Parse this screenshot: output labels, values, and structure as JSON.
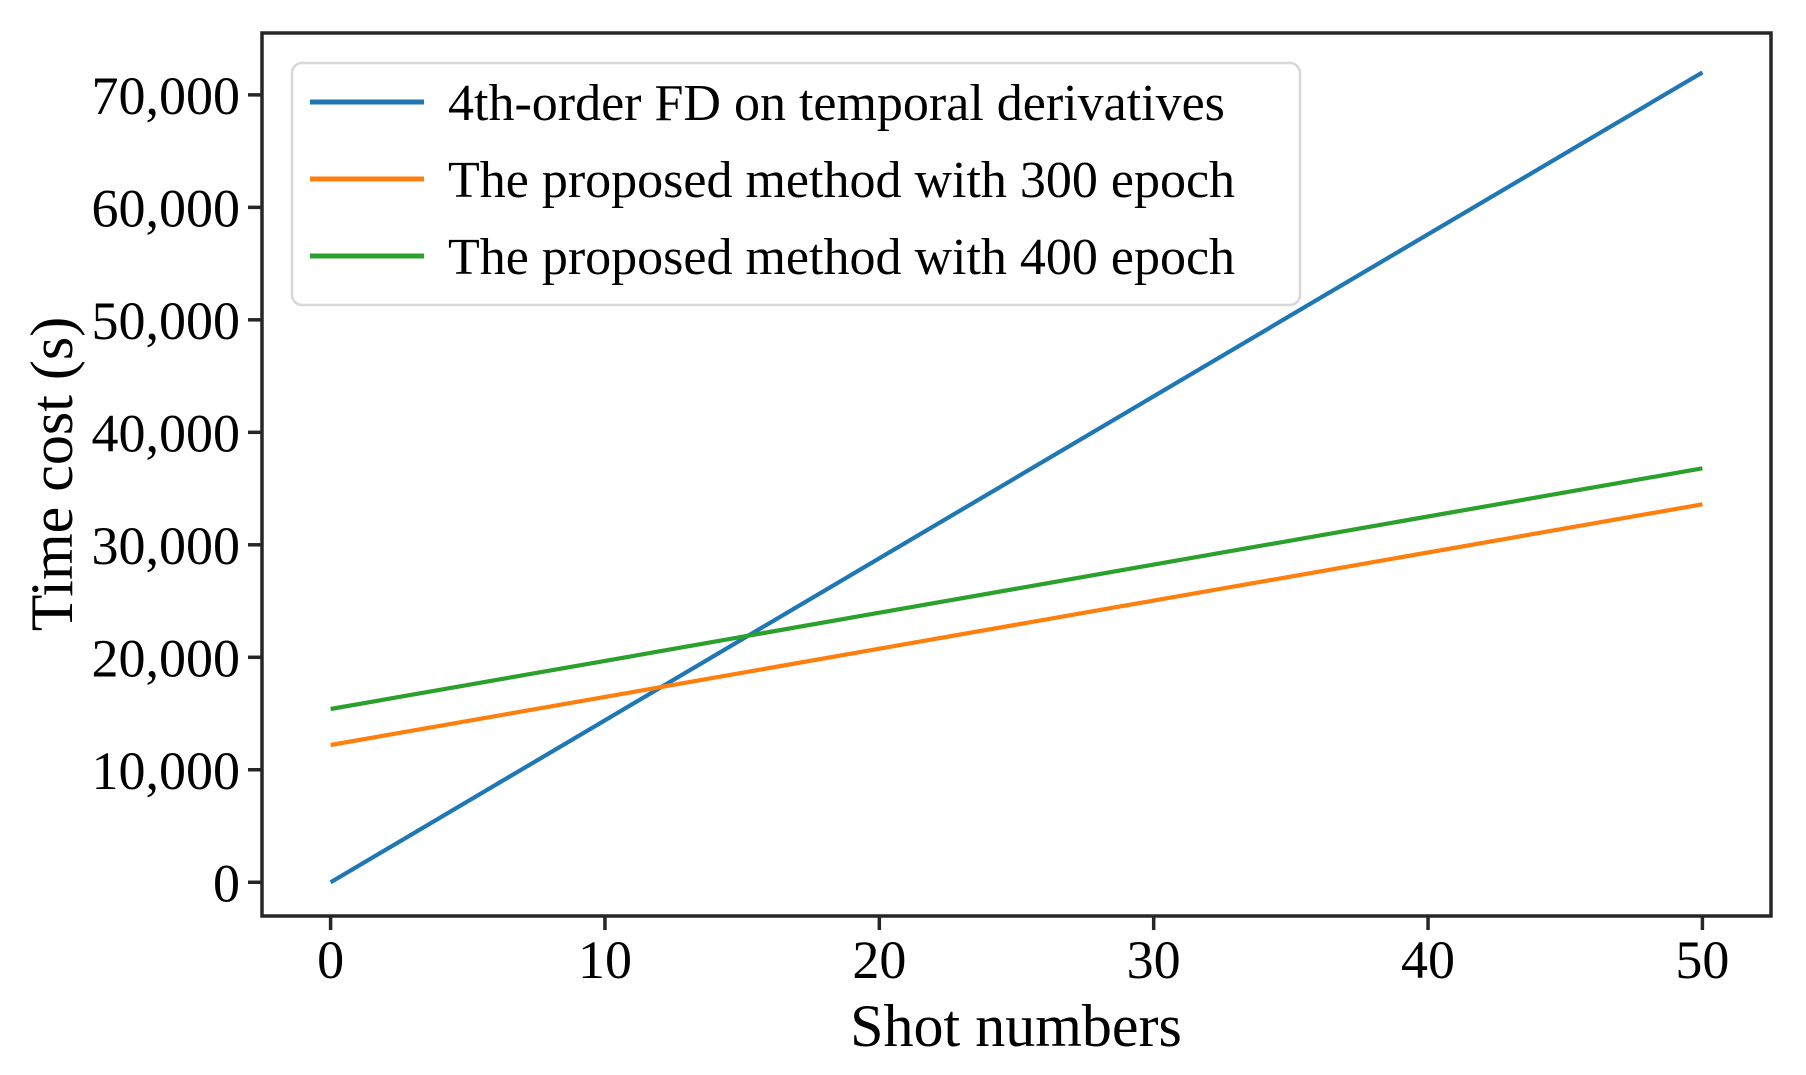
{
  "chart_data": {
    "type": "line",
    "title": "",
    "xlabel": "Shot numbers",
    "ylabel": "Time cost (s)",
    "xlim": [
      -2.5,
      52.5
    ],
    "ylim": [
      -3000,
      75500
    ],
    "grid": false,
    "legend_position": "upper left",
    "xticks": {
      "values": [
        0,
        10,
        20,
        30,
        40,
        50
      ],
      "labels": [
        "0",
        "10",
        "20",
        "30",
        "40",
        "50"
      ]
    },
    "yticks": {
      "values": [
        0,
        10000,
        20000,
        30000,
        40000,
        50000,
        60000,
        70000
      ],
      "labels": [
        "0",
        "10,000",
        "20,000",
        "30,000",
        "40,000",
        "50,000",
        "60,000",
        "70,000"
      ]
    },
    "x": [
      0,
      10,
      20,
      30,
      40,
      50
    ],
    "series": [
      {
        "name": "4th-order FD on temporal derivatives",
        "color": "#1f77b4",
        "values": [
          0,
          14400,
          28800,
          43200,
          57600,
          72000
        ]
      },
      {
        "name": "The proposed method with 300 epoch",
        "color": "#ff7f0e",
        "values": [
          12200,
          16480,
          20760,
          25040,
          29320,
          33600
        ]
      },
      {
        "name": "The proposed method with 400 epoch",
        "color": "#2ca02c",
        "values": [
          15400,
          19680,
          23960,
          28240,
          32520,
          36800
        ]
      }
    ]
  }
}
